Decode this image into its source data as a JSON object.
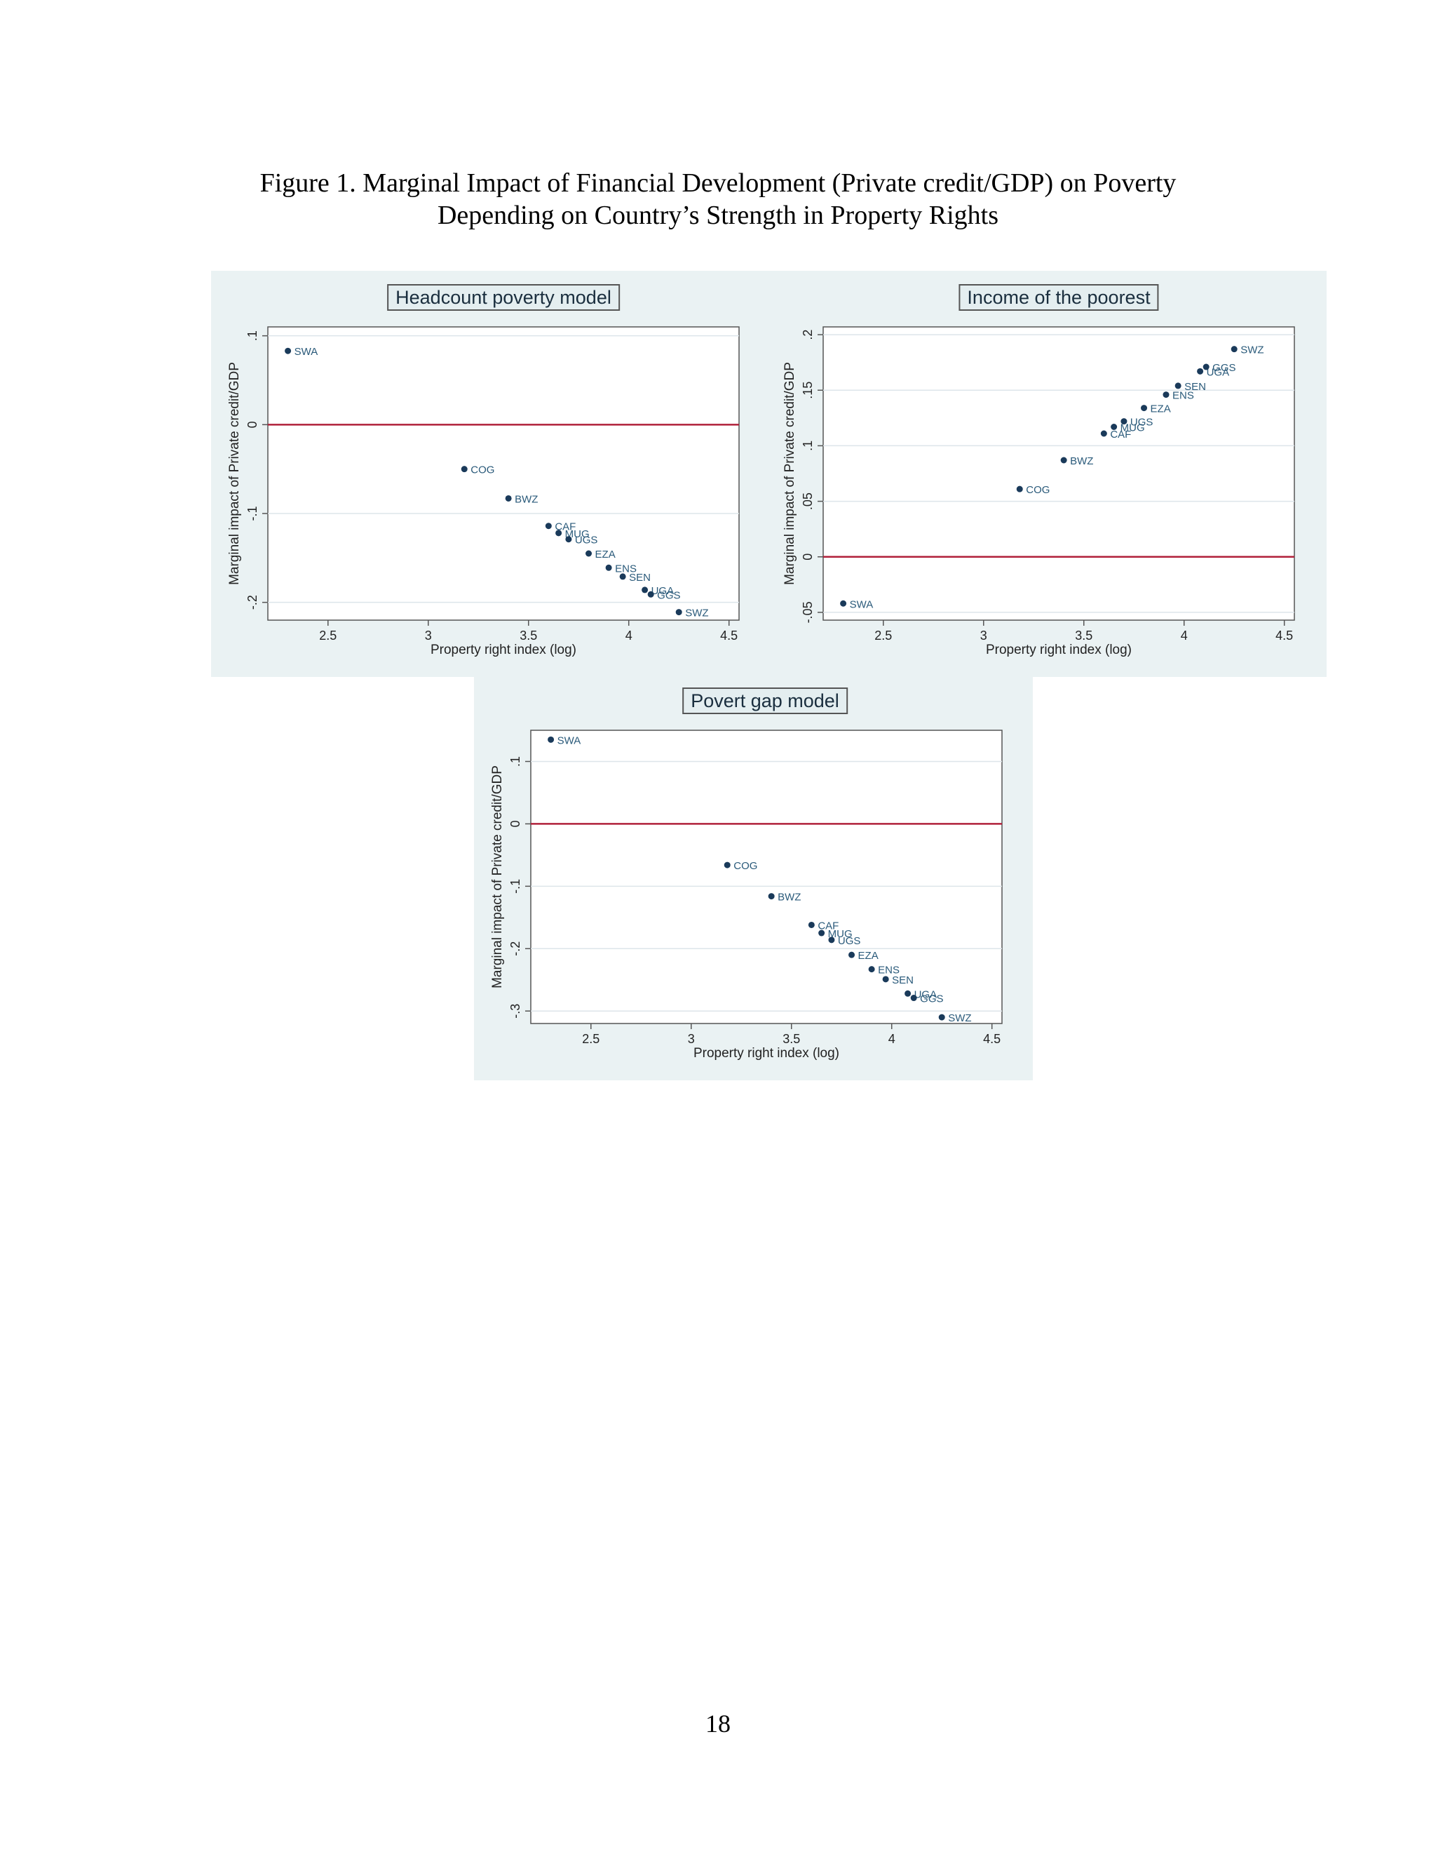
{
  "figure": {
    "title_line1": "Figure 1. Marginal Impact of Financial Development (Private credit/GDP) on Poverty",
    "title_line2": "Depending on Country’s Strength in Property Rights"
  },
  "page_number": "18",
  "colors": {
    "panel_bg": "#eaf2f3",
    "marker": "#1a3a5a",
    "label": "#2a5a7a",
    "zero_line": "#b0203a",
    "grid": "#dde5ea"
  },
  "chart_data": [
    {
      "type": "scatter",
      "title": "Headcount poverty model",
      "xlabel": "Property right index (log)",
      "ylabel": "Marginal impact of Private credit/GDP",
      "xlim": [
        2.2,
        4.55
      ],
      "ylim": [
        -0.22,
        0.11
      ],
      "xticks": [
        2.5,
        3,
        3.5,
        4,
        4.5
      ],
      "xtick_labels": [
        "2.5",
        "3",
        "3.5",
        "4",
        "4.5"
      ],
      "yticks": [
        -0.2,
        -0.1,
        0,
        0.1
      ],
      "ytick_labels": [
        "-.2",
        "-.1",
        "0",
        ".1"
      ],
      "reference_line_y": 0,
      "grid": true,
      "points": [
        {
          "x": 2.3,
          "y": 0.083,
          "label": "SWA"
        },
        {
          "x": 3.18,
          "y": -0.05,
          "label": "COG"
        },
        {
          "x": 3.4,
          "y": -0.083,
          "label": "BWZ"
        },
        {
          "x": 3.6,
          "y": -0.114,
          "label": "CAF"
        },
        {
          "x": 3.65,
          "y": -0.122,
          "label": "MUG"
        },
        {
          "x": 3.7,
          "y": -0.129,
          "label": "UGS"
        },
        {
          "x": 3.8,
          "y": -0.145,
          "label": "EZA"
        },
        {
          "x": 3.9,
          "y": -0.161,
          "label": "ENS"
        },
        {
          "x": 3.97,
          "y": -0.171,
          "label": "SEN"
        },
        {
          "x": 4.08,
          "y": -0.186,
          "label": "UGA"
        },
        {
          "x": 4.11,
          "y": -0.191,
          "label": "GGS"
        },
        {
          "x": 4.25,
          "y": -0.211,
          "label": "SWZ"
        }
      ]
    },
    {
      "type": "scatter",
      "title": "Income of the poorest",
      "xlabel": "Property right index (log)",
      "ylabel": "Marginal impact of Private credit/GDP",
      "xlim": [
        2.2,
        4.55
      ],
      "ylim": [
        -0.057,
        0.207
      ],
      "xticks": [
        2.5,
        3,
        3.5,
        4,
        4.5
      ],
      "xtick_labels": [
        "2.5",
        "3",
        "3.5",
        "4",
        "4.5"
      ],
      "yticks": [
        -0.05,
        0,
        0.05,
        0.1,
        0.15,
        0.2
      ],
      "ytick_labels": [
        "-.05",
        "0",
        ".05",
        ".1",
        ".15",
        ".2"
      ],
      "reference_line_y": 0,
      "grid": true,
      "points": [
        {
          "x": 2.3,
          "y": -0.042,
          "label": "SWA"
        },
        {
          "x": 3.18,
          "y": 0.061,
          "label": "COG"
        },
        {
          "x": 3.4,
          "y": 0.087,
          "label": "BWZ"
        },
        {
          "x": 3.6,
          "y": 0.111,
          "label": "CAF"
        },
        {
          "x": 3.65,
          "y": 0.117,
          "label": "MUG"
        },
        {
          "x": 3.7,
          "y": 0.122,
          "label": "UGS"
        },
        {
          "x": 3.8,
          "y": 0.134,
          "label": "EZA"
        },
        {
          "x": 3.91,
          "y": 0.146,
          "label": "ENS"
        },
        {
          "x": 3.97,
          "y": 0.154,
          "label": "SEN"
        },
        {
          "x": 4.08,
          "y": 0.167,
          "label": "UGA"
        },
        {
          "x": 4.11,
          "y": 0.171,
          "label": "GGS"
        },
        {
          "x": 4.25,
          "y": 0.187,
          "label": "SWZ"
        }
      ]
    },
    {
      "type": "scatter",
      "title": "Povert gap model",
      "xlabel": "Property right index (log)",
      "ylabel": "Marginal impact of Private credit/GDP",
      "xlim": [
        2.2,
        4.55
      ],
      "ylim": [
        -0.32,
        0.15
      ],
      "xticks": [
        2.5,
        3,
        3.5,
        4,
        4.5
      ],
      "xtick_labels": [
        "2.5",
        "3",
        "3.5",
        "4",
        "4.5"
      ],
      "yticks": [
        -0.3,
        -0.2,
        -0.1,
        0,
        0.1
      ],
      "ytick_labels": [
        "-.3",
        "-.2",
        "-.1",
        "0",
        ".1"
      ],
      "reference_line_y": 0,
      "grid": true,
      "points": [
        {
          "x": 2.3,
          "y": 0.135,
          "label": "SWA"
        },
        {
          "x": 3.18,
          "y": -0.066,
          "label": "COG"
        },
        {
          "x": 3.4,
          "y": -0.116,
          "label": "BWZ"
        },
        {
          "x": 3.6,
          "y": -0.162,
          "label": "CAF"
        },
        {
          "x": 3.65,
          "y": -0.175,
          "label": "MUG"
        },
        {
          "x": 3.7,
          "y": -0.186,
          "label": "UGS"
        },
        {
          "x": 3.8,
          "y": -0.21,
          "label": "EZA"
        },
        {
          "x": 3.9,
          "y": -0.233,
          "label": "ENS"
        },
        {
          "x": 3.97,
          "y": -0.249,
          "label": "SEN"
        },
        {
          "x": 4.08,
          "y": -0.272,
          "label": "UGA"
        },
        {
          "x": 4.11,
          "y": -0.279,
          "label": "GGS"
        },
        {
          "x": 4.25,
          "y": -0.31,
          "label": "SWZ"
        }
      ]
    }
  ]
}
